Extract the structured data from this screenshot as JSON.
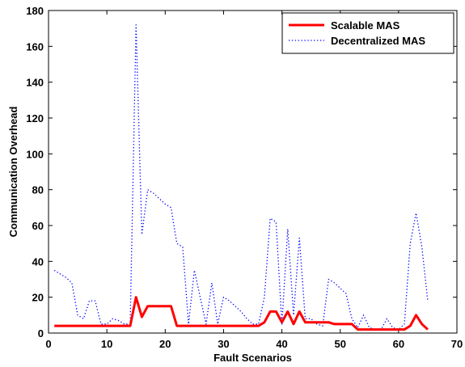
{
  "chart_data": {
    "type": "line",
    "xlabel": "Fault Scenarios",
    "ylabel": "Communication Overhead",
    "xlim": [
      0,
      70
    ],
    "ylim": [
      0,
      180
    ],
    "xticks": [
      0,
      10,
      20,
      30,
      40,
      50,
      60,
      70
    ],
    "yticks": [
      0,
      20,
      40,
      60,
      80,
      100,
      120,
      140,
      160,
      180
    ],
    "grid": false,
    "legend_position": "top-right",
    "series": [
      {
        "name": "Scalable MAS",
        "color": "#ff0000",
        "style": "solid",
        "x": [
          1,
          2,
          3,
          4,
          5,
          6,
          7,
          8,
          9,
          10,
          11,
          12,
          13,
          14,
          15,
          16,
          17,
          18,
          19,
          20,
          21,
          22,
          23,
          24,
          25,
          26,
          27,
          28,
          29,
          30,
          31,
          32,
          33,
          34,
          35,
          36,
          37,
          38,
          39,
          40,
          41,
          42,
          43,
          44,
          45,
          46,
          47,
          48,
          49,
          50,
          51,
          52,
          53,
          54,
          55,
          56,
          57,
          58,
          59,
          60,
          61,
          62,
          63,
          64,
          65
        ],
        "values": [
          4,
          4,
          4,
          4,
          4,
          4,
          4,
          4,
          4,
          4,
          4,
          4,
          4,
          4,
          20,
          9,
          15,
          15,
          15,
          15,
          15,
          4,
          4,
          4,
          4,
          4,
          4,
          4,
          4,
          4,
          4,
          4,
          4,
          4,
          4,
          4,
          6,
          12,
          12,
          6,
          12,
          5,
          12,
          6,
          6,
          6,
          6,
          6,
          5,
          5,
          5,
          5,
          2,
          2,
          2,
          2,
          2,
          2,
          2,
          2,
          2,
          4,
          10,
          5,
          2
        ]
      },
      {
        "name": "Decentralized MAS",
        "color": "#0000ff",
        "style": "dotted",
        "x": [
          1,
          2,
          3,
          4,
          5,
          6,
          7,
          8,
          9,
          10,
          11,
          12,
          13,
          14,
          15,
          16,
          17,
          18,
          19,
          20,
          21,
          22,
          23,
          24,
          25,
          26,
          27,
          28,
          29,
          30,
          31,
          32,
          33,
          34,
          35,
          36,
          37,
          38,
          39,
          40,
          41,
          42,
          43,
          44,
          45,
          46,
          47,
          48,
          49,
          50,
          51,
          52,
          53,
          54,
          55,
          56,
          57,
          58,
          59,
          60,
          61,
          62,
          63,
          64,
          65
        ],
        "values": [
          35,
          33,
          31,
          28,
          10,
          8,
          18,
          18,
          5,
          5,
          8,
          7,
          5,
          5,
          172,
          55,
          80,
          78,
          75,
          72,
          70,
          50,
          48,
          5,
          35,
          20,
          5,
          28,
          5,
          20,
          18,
          15,
          12,
          8,
          5,
          5,
          20,
          64,
          62,
          5,
          58,
          10,
          53,
          8,
          8,
          5,
          4,
          30,
          28,
          25,
          22,
          8,
          3,
          10,
          3,
          2,
          2,
          8,
          3,
          2,
          5,
          50,
          67,
          48,
          18
        ]
      }
    ]
  }
}
